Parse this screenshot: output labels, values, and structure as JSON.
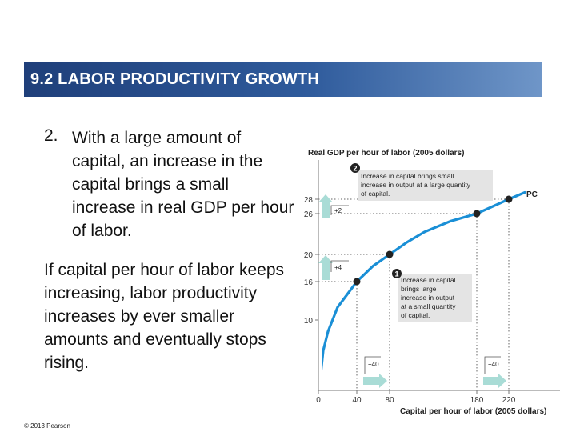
{
  "slide": {
    "title": "9.2  LABOR PRODUCTIVITY GROWTH",
    "point_number": "2.",
    "point_text": "With a large amount of capital, an increase in the capital brings a small increase in real GDP per hour of labor.",
    "paragraph": "If capital per hour of labor keeps increasing, labor productivity increases by ever smaller amounts and eventually stops rising.",
    "copyright": "© 2013 Pearson"
  },
  "chart_data": {
    "type": "line",
    "ylabel": "Real GDP per hour of labor (2005 dollars)",
    "xlabel": "Capital per hour of labor (2005 dollars)",
    "x_ticks": [
      "0",
      "40",
      "80",
      "180",
      "220"
    ],
    "y_ticks": [
      "10",
      "16",
      "20",
      "26",
      "28"
    ],
    "series": [
      {
        "name": "PC",
        "color": "#1a8fd6",
        "x": [
          0,
          5,
          10,
          20,
          30,
          40,
          60,
          80,
          100,
          120,
          150,
          180,
          200,
          220,
          240
        ],
        "y": [
          0,
          6,
          8.5,
          12,
          14,
          16,
          18.3,
          20,
          21.8,
          23.3,
          24.9,
          26,
          27,
          28,
          28.9
        ]
      }
    ],
    "marked_points": [
      {
        "x": 40,
        "y": 16
      },
      {
        "x": 80,
        "y": 20
      },
      {
        "x": 180,
        "y": 26
      },
      {
        "x": 220,
        "y": 28
      }
    ],
    "annotations": [
      {
        "label": "1",
        "text": "Increase in capital brings large increase in output at a small quantity of capital.",
        "dx": "+40",
        "dy": "+4"
      },
      {
        "label": "2",
        "text": "Increase in capital brings small increase in output at a large quantity of capital.",
        "dx": "+40",
        "dy": "+2"
      }
    ],
    "colors": {
      "curve": "#1a8fd6",
      "arrow": "#a9dcd6",
      "annotation_box": "#e4e4e4",
      "marker": "#222222",
      "badge": "#222222"
    }
  }
}
